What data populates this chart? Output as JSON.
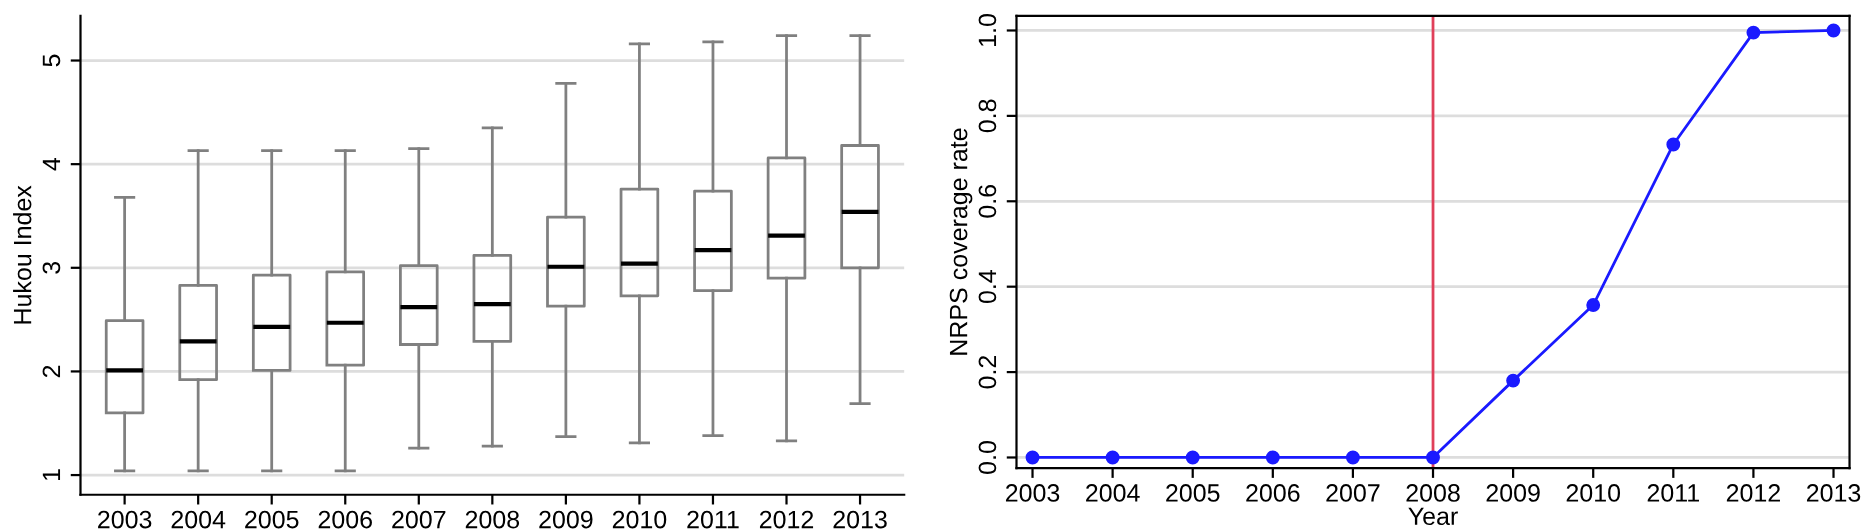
{
  "chart_data": [
    {
      "type": "box",
      "ylabel": "Hukou Index",
      "categories": [
        "2003",
        "2004",
        "2005",
        "2006",
        "2007",
        "2008",
        "2009",
        "2010",
        "2011",
        "2012",
        "2013"
      ],
      "boxes": [
        {
          "low": 1.04,
          "q1": 1.6,
          "median": 2.01,
          "q3": 2.49,
          "high": 3.68
        },
        {
          "low": 1.04,
          "q1": 1.92,
          "median": 2.29,
          "q3": 2.83,
          "high": 4.13
        },
        {
          "low": 1.04,
          "q1": 2.01,
          "median": 2.43,
          "q3": 2.93,
          "high": 4.13
        },
        {
          "low": 1.04,
          "q1": 2.06,
          "median": 2.47,
          "q3": 2.96,
          "high": 4.13
        },
        {
          "low": 1.26,
          "q1": 2.26,
          "median": 2.62,
          "q3": 3.02,
          "high": 4.15
        },
        {
          "low": 1.28,
          "q1": 2.29,
          "median": 2.65,
          "q3": 3.12,
          "high": 4.35
        },
        {
          "low": 1.37,
          "q1": 2.63,
          "median": 3.01,
          "q3": 3.49,
          "high": 4.78
        },
        {
          "low": 1.31,
          "q1": 2.73,
          "median": 3.04,
          "q3": 3.76,
          "high": 5.16
        },
        {
          "low": 1.38,
          "q1": 2.78,
          "median": 3.17,
          "q3": 3.74,
          "high": 5.18
        },
        {
          "low": 1.33,
          "q1": 2.9,
          "median": 3.31,
          "q3": 4.06,
          "high": 5.24
        },
        {
          "low": 1.69,
          "q1": 3.0,
          "median": 3.54,
          "q3": 4.18,
          "high": 5.24
        }
      ],
      "color": "#808080",
      "ylim": [
        0.81,
        5.43
      ],
      "yticks": [
        1,
        2,
        3,
        4,
        5
      ],
      "grid": "y"
    },
    {
      "type": "line",
      "xlabel": "Year",
      "ylabel": "NRPS coverage rate",
      "x": [
        2003,
        2004,
        2005,
        2006,
        2007,
        2008,
        2009,
        2010,
        2011,
        2012,
        2013
      ],
      "series": [
        {
          "color": "#1a1aff",
          "values": [
            0,
            0,
            0,
            0,
            0,
            0,
            0.18,
            0.357,
            0.733,
            0.995,
            1.0
          ]
        }
      ],
      "marker": "circle",
      "xlim": [
        2002.8,
        2013.2
      ],
      "xticks": [
        2003,
        2004,
        2005,
        2006,
        2007,
        2008,
        2009,
        2010,
        2011,
        2012,
        2013
      ],
      "ylim": [
        -0.025,
        1.034
      ],
      "yticks": [
        {
          "value": 0,
          "label": "0.0"
        },
        {
          "value": 0.2,
          "label": "0.2"
        },
        {
          "value": 0.4,
          "label": "0.4"
        },
        {
          "value": 0.6,
          "label": "0.6"
        },
        {
          "value": 0.8,
          "label": "0.8"
        },
        {
          "value": 1,
          "label": "1.0"
        }
      ],
      "grid": "y",
      "ref_lines": [
        {
          "axis": "x",
          "value": 2008,
          "color": "#e0405a"
        }
      ]
    }
  ]
}
